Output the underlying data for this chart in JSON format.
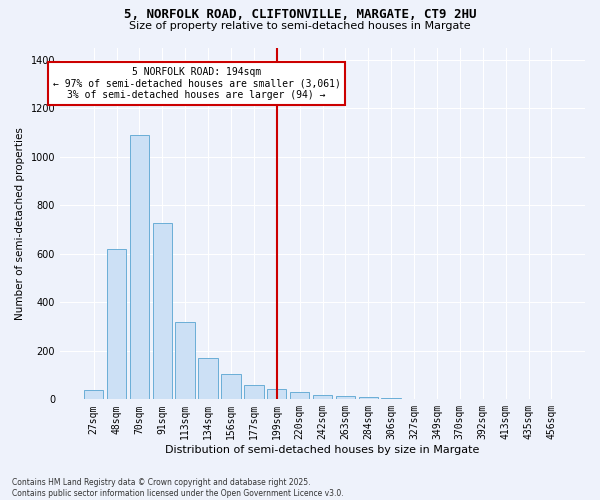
{
  "title_line1": "5, NORFOLK ROAD, CLIFTONVILLE, MARGATE, CT9 2HU",
  "title_line2": "Size of property relative to semi-detached houses in Margate",
  "xlabel": "Distribution of semi-detached houses by size in Margate",
  "ylabel": "Number of semi-detached properties",
  "bar_labels": [
    "27sqm",
    "48sqm",
    "70sqm",
    "91sqm",
    "113sqm",
    "134sqm",
    "156sqm",
    "177sqm",
    "199sqm",
    "220sqm",
    "242sqm",
    "263sqm",
    "284sqm",
    "306sqm",
    "327sqm",
    "349sqm",
    "370sqm",
    "392sqm",
    "413sqm",
    "435sqm",
    "456sqm"
  ],
  "bar_values": [
    37,
    620,
    1090,
    725,
    320,
    170,
    105,
    60,
    42,
    30,
    17,
    13,
    10,
    5,
    3,
    2,
    1,
    1,
    1,
    1,
    1
  ],
  "vline_index": 8.0,
  "annotation_title": "5 NORFOLK ROAD: 194sqm",
  "annotation_line1": "← 97% of semi-detached houses are smaller (3,061)",
  "annotation_line2": "3% of semi-detached houses are larger (94) →",
  "bar_color": "#cce0f5",
  "bar_edge_color": "#6aaed6",
  "vline_color": "#cc0000",
  "annotation_box_color": "#cc0000",
  "background_color": "#eef2fb",
  "grid_color": "#ffffff",
  "ylim": [
    0,
    1450
  ],
  "yticks": [
    0,
    200,
    400,
    600,
    800,
    1000,
    1200,
    1400
  ],
  "footer_line1": "Contains HM Land Registry data © Crown copyright and database right 2025.",
  "footer_line2": "Contains public sector information licensed under the Open Government Licence v3.0."
}
